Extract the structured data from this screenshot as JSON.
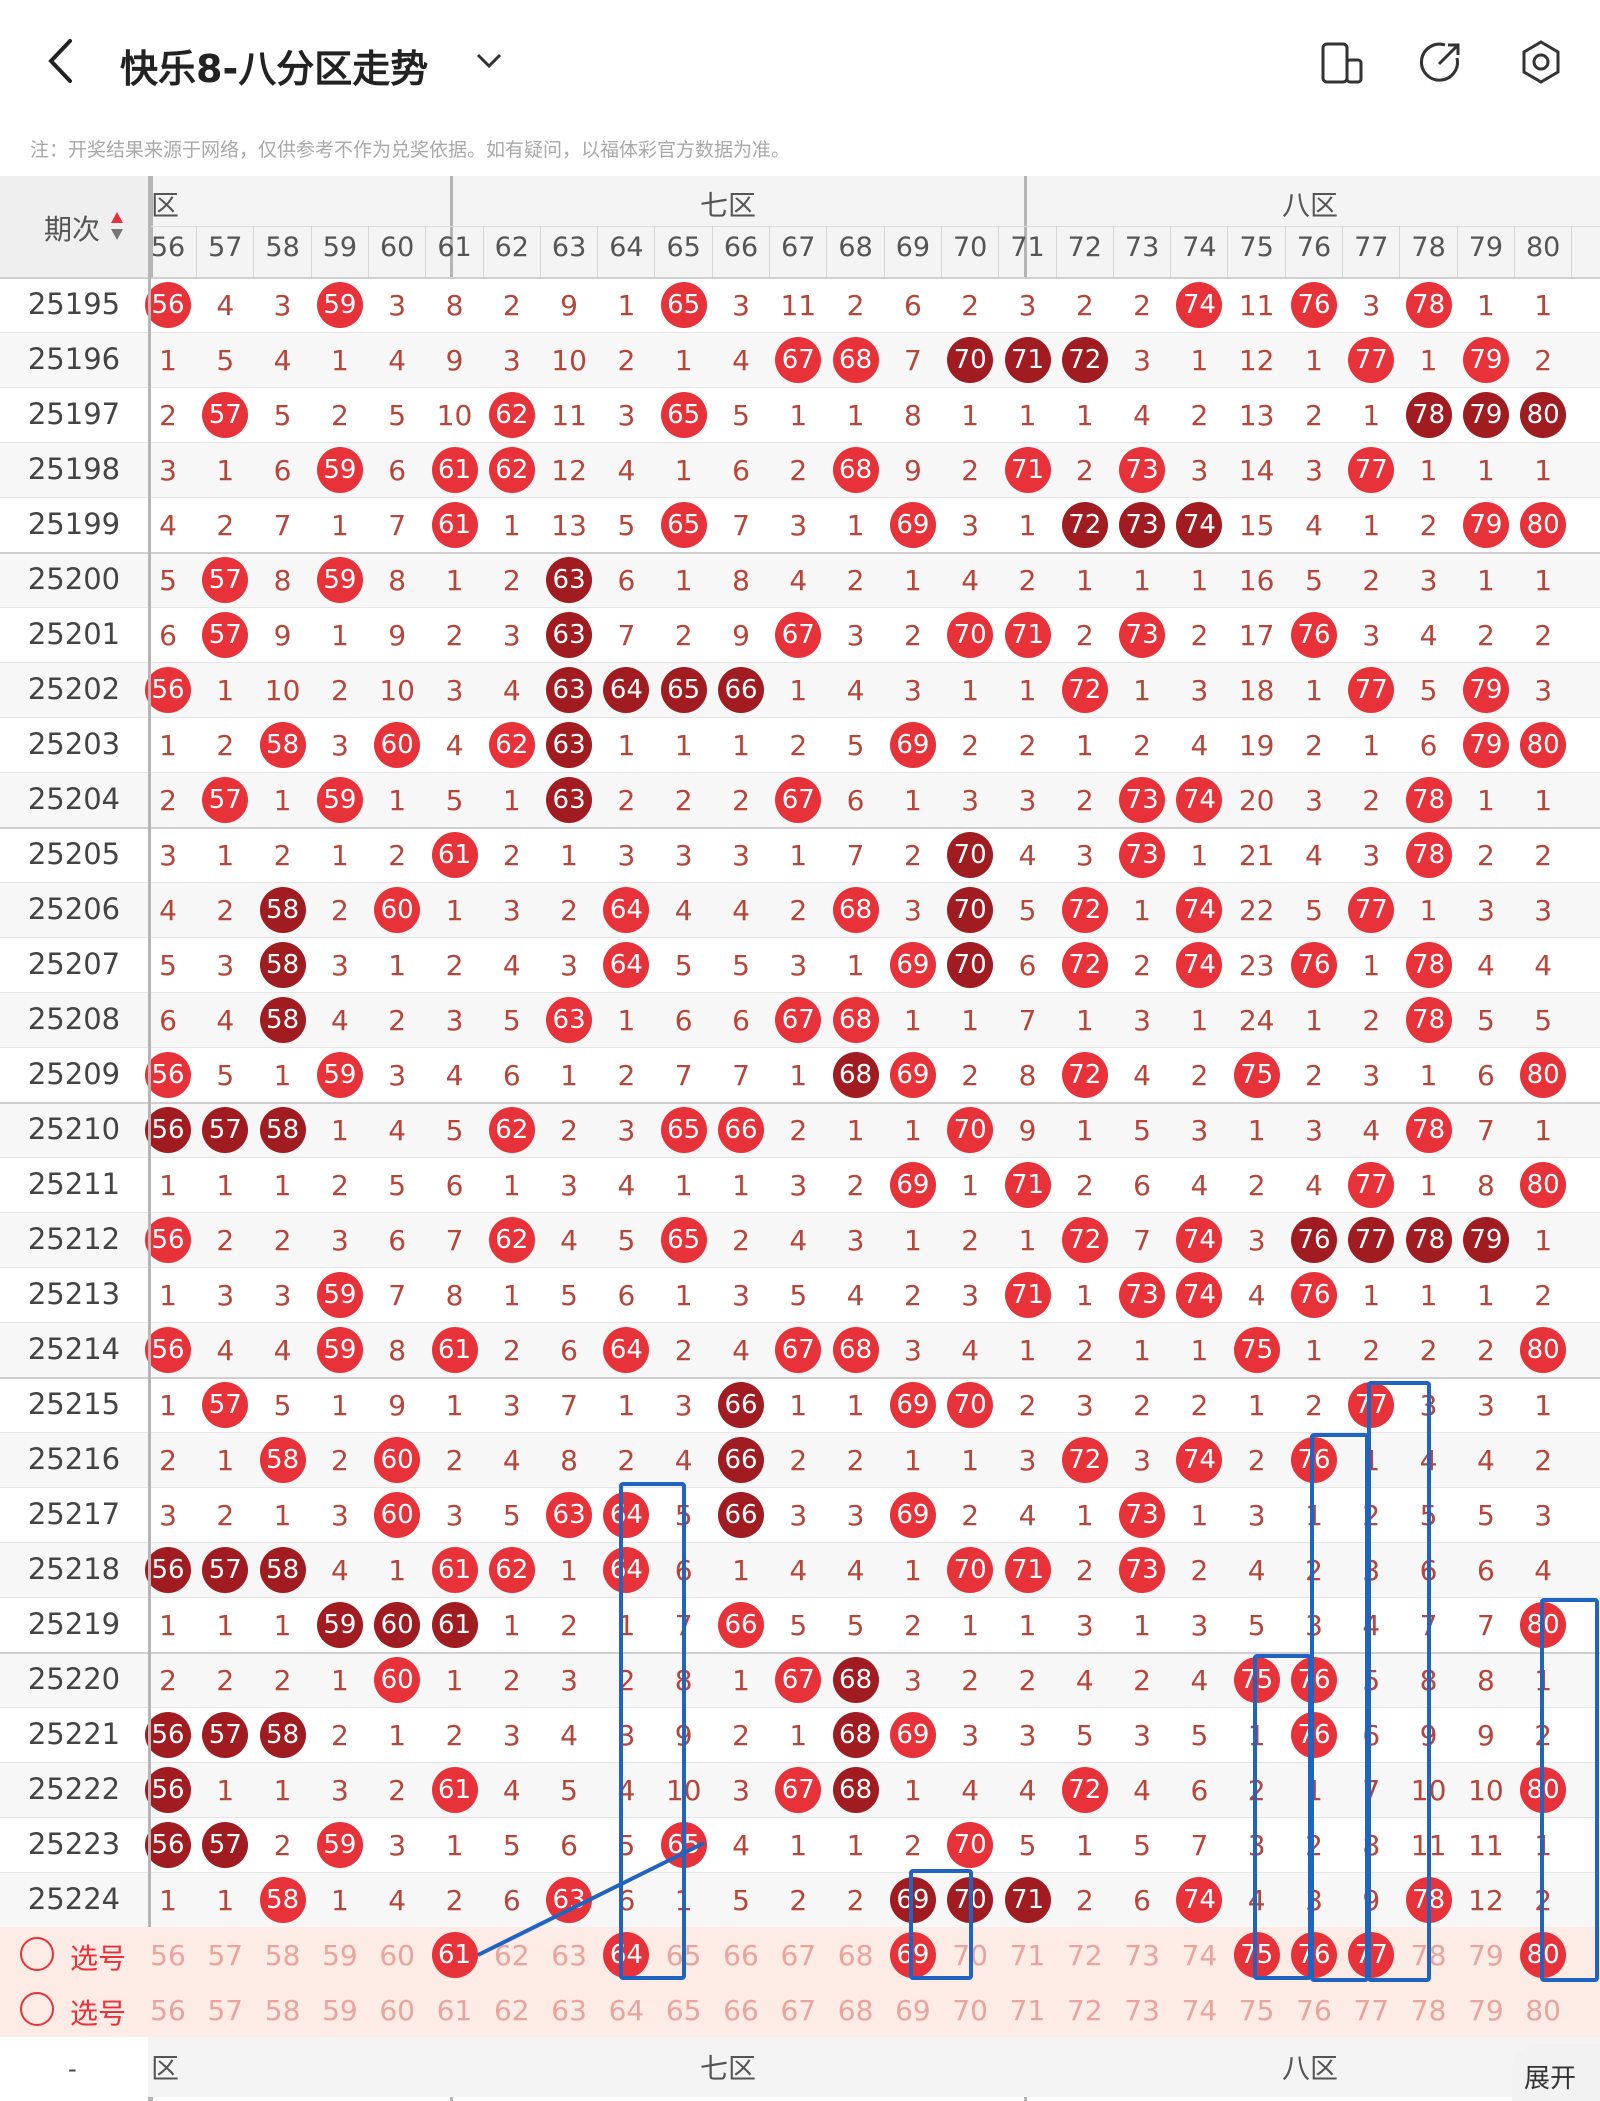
{
  "app": {
    "title": "快乐8-八分区走势",
    "note": "注：开奖结果来源于网络，仅供参考不作为兑奖依据。如有疑问，以福体彩官方数据为准。"
  },
  "table": {
    "period_header": "期次",
    "zones": [
      {
        "label": "六区",
        "visible_text": "区"
      },
      {
        "label": "七区",
        "visible_text": "七区"
      },
      {
        "label": "八区",
        "visible_text": "八区"
      }
    ],
    "columns": [
      "56",
      "57",
      "58",
      "59",
      "60",
      "61",
      "62",
      "63",
      "64",
      "65",
      "66",
      "67",
      "68",
      "69",
      "70",
      "71",
      "72",
      "73",
      "74",
      "75",
      "76",
      "77",
      "78",
      "79",
      "80"
    ],
    "periods": [
      "25195",
      "25196",
      "25197",
      "25198",
      "25199",
      "25200",
      "25201",
      "25202",
      "25203",
      "25204",
      "25205",
      "25206",
      "25207",
      "25208",
      "25209",
      "25210",
      "25211",
      "25212",
      "25213",
      "25214",
      "25215",
      "25216",
      "25217",
      "25218",
      "25219",
      "25220",
      "25221",
      "25222",
      "25223",
      "25224"
    ],
    "rows": [
      [
        "B",
        "4",
        "3",
        "B",
        "3",
        "8",
        "2",
        "9",
        "1",
        "B",
        "3",
        "11",
        "2",
        "6",
        "2",
        "3",
        "2",
        "2",
        "B",
        "11",
        "B",
        "3",
        "B",
        "1",
        "1"
      ],
      [
        "1",
        "5",
        "4",
        "1",
        "4",
        "9",
        "3",
        "10",
        "2",
        "1",
        "4",
        "B",
        "B",
        "7",
        "D",
        "D",
        "D",
        "3",
        "1",
        "12",
        "1",
        "B",
        "1",
        "B",
        "2"
      ],
      [
        "2",
        "B",
        "5",
        "2",
        "5",
        "10",
        "B",
        "11",
        "3",
        "B",
        "5",
        "1",
        "1",
        "8",
        "1",
        "1",
        "1",
        "4",
        "2",
        "13",
        "2",
        "1",
        "D",
        "D",
        "D"
      ],
      [
        "3",
        "1",
        "6",
        "B",
        "6",
        "B",
        "B",
        "12",
        "4",
        "1",
        "6",
        "2",
        "B",
        "9",
        "2",
        "B",
        "2",
        "B",
        "3",
        "14",
        "3",
        "B",
        "1",
        "1",
        "1"
      ],
      [
        "4",
        "2",
        "7",
        "1",
        "7",
        "B",
        "1",
        "13",
        "5",
        "B",
        "7",
        "3",
        "1",
        "B",
        "3",
        "1",
        "D",
        "D",
        "D",
        "15",
        "4",
        "1",
        "2",
        "B",
        "B"
      ],
      [
        "5",
        "B",
        "8",
        "B",
        "8",
        "1",
        "2",
        "D",
        "6",
        "1",
        "8",
        "4",
        "2",
        "1",
        "4",
        "2",
        "1",
        "1",
        "1",
        "16",
        "5",
        "2",
        "3",
        "1",
        "1"
      ],
      [
        "6",
        "B",
        "9",
        "1",
        "9",
        "2",
        "3",
        "D",
        "7",
        "2",
        "9",
        "B",
        "3",
        "2",
        "B",
        "B",
        "2",
        "B",
        "2",
        "17",
        "B",
        "3",
        "4",
        "2",
        "2"
      ],
      [
        "B",
        "1",
        "10",
        "2",
        "10",
        "3",
        "4",
        "D",
        "D",
        "D",
        "D",
        "1",
        "4",
        "3",
        "1",
        "1",
        "B",
        "1",
        "3",
        "18",
        "1",
        "B",
        "5",
        "B",
        "3"
      ],
      [
        "1",
        "2",
        "B",
        "3",
        "B",
        "4",
        "B",
        "D",
        "1",
        "1",
        "1",
        "2",
        "5",
        "B",
        "2",
        "2",
        "1",
        "2",
        "4",
        "19",
        "2",
        "1",
        "6",
        "B",
        "B"
      ],
      [
        "2",
        "B",
        "1",
        "B",
        "1",
        "5",
        "1",
        "D",
        "2",
        "2",
        "2",
        "B",
        "6",
        "1",
        "3",
        "3",
        "2",
        "B",
        "B",
        "20",
        "3",
        "2",
        "B",
        "1",
        "1"
      ],
      [
        "3",
        "1",
        "2",
        "1",
        "2",
        "B",
        "2",
        "1",
        "3",
        "3",
        "3",
        "1",
        "7",
        "2",
        "D",
        "4",
        "3",
        "B",
        "1",
        "21",
        "4",
        "3",
        "B",
        "2",
        "2"
      ],
      [
        "4",
        "2",
        "D",
        "2",
        "B",
        "1",
        "3",
        "2",
        "B",
        "4",
        "4",
        "2",
        "B",
        "3",
        "D",
        "5",
        "B",
        "1",
        "B",
        "22",
        "5",
        "B",
        "1",
        "3",
        "3"
      ],
      [
        "5",
        "3",
        "D",
        "3",
        "1",
        "2",
        "4",
        "3",
        "B",
        "5",
        "5",
        "3",
        "1",
        "B",
        "D",
        "6",
        "B",
        "2",
        "B",
        "23",
        "B",
        "1",
        "B",
        "4",
        "4"
      ],
      [
        "6",
        "4",
        "D",
        "4",
        "2",
        "3",
        "5",
        "B",
        "1",
        "6",
        "6",
        "B",
        "B",
        "1",
        "1",
        "7",
        "1",
        "3",
        "1",
        "24",
        "1",
        "2",
        "B",
        "5",
        "5"
      ],
      [
        "B",
        "5",
        "1",
        "B",
        "3",
        "4",
        "6",
        "1",
        "2",
        "7",
        "7",
        "1",
        "D",
        "B",
        "2",
        "8",
        "B",
        "4",
        "2",
        "B",
        "2",
        "3",
        "1",
        "6",
        "B"
      ],
      [
        "D",
        "D",
        "D",
        "1",
        "4",
        "5",
        "B",
        "2",
        "3",
        "B",
        "B",
        "2",
        "1",
        "1",
        "B",
        "9",
        "1",
        "5",
        "3",
        "1",
        "3",
        "4",
        "B",
        "7",
        "1"
      ],
      [
        "1",
        "1",
        "1",
        "2",
        "5",
        "6",
        "1",
        "3",
        "4",
        "1",
        "1",
        "3",
        "2",
        "B",
        "1",
        "B",
        "2",
        "6",
        "4",
        "2",
        "4",
        "B",
        "1",
        "8",
        "B"
      ],
      [
        "B",
        "2",
        "2",
        "3",
        "6",
        "7",
        "B",
        "4",
        "5",
        "B",
        "2",
        "4",
        "3",
        "1",
        "2",
        "1",
        "B",
        "7",
        "B",
        "3",
        "D",
        "D",
        "D",
        "D",
        "1"
      ],
      [
        "1",
        "3",
        "3",
        "B",
        "7",
        "8",
        "1",
        "5",
        "6",
        "1",
        "3",
        "5",
        "4",
        "2",
        "3",
        "B",
        "1",
        "B",
        "B",
        "4",
        "B",
        "1",
        "1",
        "1",
        "2"
      ],
      [
        "B",
        "4",
        "4",
        "B",
        "8",
        "B",
        "2",
        "6",
        "B",
        "2",
        "4",
        "B",
        "B",
        "3",
        "4",
        "1",
        "2",
        "1",
        "1",
        "B",
        "1",
        "2",
        "2",
        "2",
        "B"
      ],
      [
        "1",
        "B",
        "5",
        "1",
        "9",
        "1",
        "3",
        "7",
        "1",
        "3",
        "D",
        "1",
        "1",
        "B",
        "B",
        "2",
        "3",
        "2",
        "2",
        "1",
        "2",
        "B",
        "3",
        "3",
        "1"
      ],
      [
        "2",
        "1",
        "B",
        "2",
        "B",
        "2",
        "4",
        "8",
        "2",
        "4",
        "D",
        "2",
        "2",
        "1",
        "1",
        "3",
        "B",
        "3",
        "B",
        "2",
        "B",
        "1",
        "4",
        "4",
        "2"
      ],
      [
        "3",
        "2",
        "1",
        "3",
        "B",
        "3",
        "5",
        "B",
        "B",
        "5",
        "D",
        "3",
        "3",
        "B",
        "2",
        "4",
        "1",
        "B",
        "1",
        "3",
        "1",
        "2",
        "5",
        "5",
        "3"
      ],
      [
        "D",
        "D",
        "D",
        "4",
        "1",
        "B",
        "B",
        "1",
        "B",
        "6",
        "1",
        "4",
        "4",
        "1",
        "B",
        "B",
        "2",
        "B",
        "2",
        "4",
        "2",
        "3",
        "6",
        "6",
        "4"
      ],
      [
        "1",
        "1",
        "1",
        "D",
        "D",
        "D",
        "1",
        "2",
        "1",
        "7",
        "B",
        "5",
        "5",
        "2",
        "1",
        "1",
        "3",
        "1",
        "3",
        "5",
        "3",
        "4",
        "7",
        "7",
        "B"
      ],
      [
        "2",
        "2",
        "2",
        "1",
        "B",
        "1",
        "2",
        "3",
        "2",
        "8",
        "1",
        "B",
        "D",
        "3",
        "2",
        "2",
        "4",
        "2",
        "4",
        "B",
        "B",
        "5",
        "8",
        "8",
        "1"
      ],
      [
        "D",
        "D",
        "D",
        "2",
        "1",
        "2",
        "3",
        "4",
        "3",
        "9",
        "2",
        "1",
        "D",
        "B",
        "3",
        "3",
        "5",
        "3",
        "5",
        "1",
        "B",
        "6",
        "9",
        "9",
        "2"
      ],
      [
        "D",
        "1",
        "1",
        "3",
        "2",
        "B",
        "4",
        "5",
        "4",
        "10",
        "3",
        "B",
        "D",
        "1",
        "4",
        "4",
        "B",
        "4",
        "6",
        "2",
        "1",
        "7",
        "10",
        "10",
        "B"
      ],
      [
        "D",
        "D",
        "2",
        "B",
        "3",
        "1",
        "5",
        "6",
        "5",
        "B",
        "4",
        "1",
        "1",
        "2",
        "B",
        "5",
        "1",
        "5",
        "7",
        "3",
        "2",
        "8",
        "11",
        "11",
        "1"
      ],
      [
        "1",
        "1",
        "B",
        "1",
        "4",
        "2",
        "6",
        "B",
        "6",
        "1",
        "5",
        "2",
        "2",
        "D",
        "D",
        "D",
        "2",
        "6",
        "B",
        "4",
        "3",
        "9",
        "B",
        "12",
        "2"
      ]
    ],
    "selection_rows": [
      {
        "label": "选号",
        "selected": [
          "61",
          "64",
          "69",
          "75",
          "76",
          "77",
          "80"
        ]
      },
      {
        "label": "选号",
        "selected": []
      }
    ],
    "footer_zones": [
      "区",
      "七区",
      "八区"
    ],
    "footer_dash": "-"
  },
  "expand_button": "展开",
  "colors": {
    "red": "#e8323a",
    "dark_red": "#a01c21",
    "number_text": "#b8453a",
    "grid": "#d7d7d7",
    "zone_divider": "#b5b5b5",
    "selection_bg": "#fdebe5",
    "annotation_blue": "#1f64c0"
  }
}
